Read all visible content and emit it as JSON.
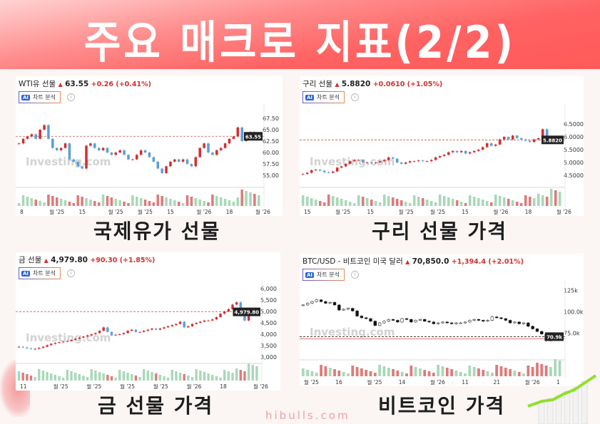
{
  "banner": {
    "title": "주요 매크로 지표(2/2)"
  },
  "footer": {
    "site": "hibulls.com"
  },
  "ai_button_label": "차트 분석",
  "ai_badge": "AI",
  "watermark": "Investing.com",
  "colors": {
    "up": "#d32f2f",
    "down": "#5b9fd6",
    "banner": "#ff5f5f",
    "vol_up": "#a8d8b8",
    "vol_down": "#e07a7a"
  },
  "chart_data": [
    {
      "type": "candlestick",
      "caption": "국제유가 선물",
      "name": "WTI유 선물",
      "price": "63.55",
      "change": "+0.26",
      "change_pct": "(+0.41%)",
      "current_label": "63.55",
      "current": 63.55,
      "ylim": [
        53,
        69.2
      ],
      "yticks": [
        "55.00",
        "57.50",
        "60.00",
        "62.50",
        "65.00",
        "67.50"
      ],
      "ytick_values": [
        55,
        57.5,
        60,
        62.5,
        65,
        67.5
      ],
      "xticks": [
        "8",
        "월 '25",
        "15",
        "월 '25",
        "월 '25",
        "15",
        "월 '26",
        "18",
        "월 '26"
      ],
      "closes": [
        62,
        63,
        63.5,
        64,
        63,
        65,
        66,
        63,
        61,
        60.5,
        61,
        62,
        58.5,
        58,
        57,
        56.5,
        61.5,
        62,
        61,
        60.5,
        61,
        60,
        59.5,
        60,
        60.5,
        59.5,
        58.5,
        58.5,
        59.5,
        60.5,
        60,
        59,
        58,
        56.5,
        55.5,
        57,
        58,
        58.5,
        58,
        58.5,
        57.5,
        57,
        59,
        61,
        62,
        60,
        59.5,
        60.5,
        61,
        62,
        63,
        63.5,
        65.5,
        62.5,
        64,
        64.5,
        63.5,
        63.55
      ]
    },
    {
      "type": "candlestick",
      "caption": "구리 선물 가격",
      "name": "구리 선물",
      "price": "5.8820",
      "change": "+0.0610",
      "change_pct": "(+1.05%)",
      "current_label": "5.8820",
      "current": 5.882,
      "ylim": [
        4.14,
        7.03
      ],
      "yticks": [
        "4.5000",
        "5.0000",
        "5.5000",
        "6.0000",
        "6.5000"
      ],
      "ytick_values": [
        4.5,
        5.0,
        5.5,
        6.0,
        6.5
      ],
      "xticks": [
        "15",
        "월 '25",
        "15",
        "월 '25",
        "월 '25",
        "15",
        "월 '26",
        "18",
        "월 '26"
      ],
      "closes": [
        4.55,
        4.6,
        4.7,
        4.72,
        4.68,
        4.62,
        4.6,
        4.65,
        4.8,
        4.85,
        4.95,
        5.05,
        5.1,
        5.1,
        5.0,
        5.0,
        4.98,
        5.0,
        5.05,
        5.1,
        5.2,
        5.15,
        5.0,
        4.95,
        5.0,
        5.05,
        5.05,
        5.08,
        5.05,
        5.05,
        5.1,
        5.2,
        5.25,
        5.3,
        5.4,
        5.45,
        5.4,
        5.45,
        5.35,
        5.4,
        5.45,
        5.5,
        5.6,
        5.75,
        5.65,
        5.7,
        5.9,
        6.0,
        5.9,
        6.05,
        5.95,
        5.9,
        5.85,
        5.8,
        5.9,
        5.95,
        6.3,
        5.9,
        5.95,
        5.8,
        5.882
      ]
    },
    {
      "type": "candlestick",
      "caption": "금 선물 가격",
      "name": "금 선물",
      "price": "4,979.80",
      "change": "+90.30",
      "change_pct": "(+1.85%)",
      "current_label": "4,979.80",
      "current": 4979.8,
      "ylim": [
        2844,
        6094
      ],
      "yticks": [
        "3,000",
        "3,500",
        "4,000",
        "4,500",
        "5,000",
        "5,500",
        "6,000"
      ],
      "ytick_values": [
        3000,
        3500,
        4000,
        4500,
        5000,
        5500,
        6000
      ],
      "xticks": [
        "11",
        "월 '25",
        "월 '25",
        "월 '25",
        "월 '25",
        "월 '26",
        "18",
        "월 '26"
      ],
      "closes": [
        3450,
        3420,
        3380,
        3350,
        3360,
        3400,
        3450,
        3520,
        3580,
        3620,
        3650,
        3680,
        3700,
        3750,
        3800,
        3850,
        3900,
        3950,
        4000,
        4050,
        4150,
        4300,
        4100,
        3950,
        3980,
        4000,
        4050,
        4150,
        4200,
        4100,
        4100,
        4150,
        4200,
        4250,
        4200,
        4250,
        4300,
        4350,
        4400,
        4450,
        4550,
        4300,
        4350,
        4450,
        4500,
        4550,
        4600,
        4600,
        4650,
        4750,
        4900,
        5000,
        5100,
        5300,
        5400,
        4800,
        4600,
        4850,
        4900,
        4979.8
      ]
    },
    {
      "type": "candlestick",
      "caption": "비트코인 가격",
      "name": "BTC/USD - 비트코인 미국 달러",
      "price": "70,850.0",
      "change": "+1,394.4",
      "change_pct": "(+2.01%)",
      "current_label": "70.9k",
      "current": 70.85,
      "ylim": [
        47,
        128
      ],
      "yticks": [
        "75.0k",
        "100.0k",
        "125k"
      ],
      "ytick_values": [
        75,
        100,
        125
      ],
      "xticks": [
        "월 '25",
        "16",
        "월 '25",
        "14",
        "월 '26",
        "11",
        "21",
        "월 '26",
        "1"
      ],
      "closes": [
        108,
        110,
        112,
        114,
        112,
        110,
        111,
        108,
        102,
        103,
        104,
        101,
        95,
        93,
        92,
        89,
        84,
        87,
        89,
        91,
        90,
        88,
        92,
        91,
        88,
        90,
        91,
        89,
        88,
        86,
        87,
        88,
        87,
        86,
        87,
        87,
        88,
        90,
        91,
        90,
        89,
        90,
        94,
        93,
        92,
        90,
        87,
        88,
        86,
        87,
        83,
        80,
        77,
        74,
        66,
        69,
        70,
        70.85
      ]
    }
  ]
}
